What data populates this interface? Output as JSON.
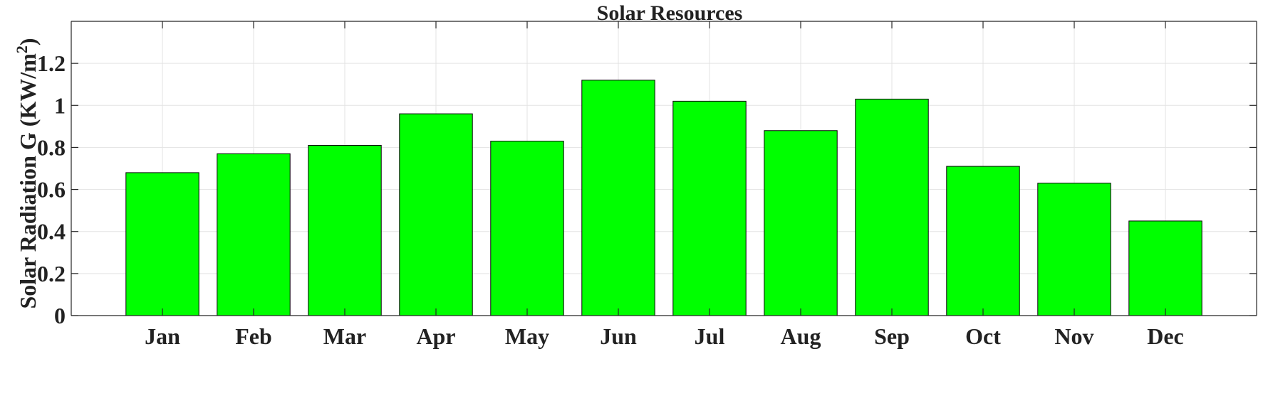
{
  "chart_data": {
    "type": "bar",
    "title": "Solar Resources",
    "xlabel": "",
    "ylabel": "Solar Radiation G (KW/m",
    "ylabel_superscript": "2",
    "ylabel_suffix": ")",
    "categories": [
      "Jan",
      "Feb",
      "Mar",
      "Apr",
      "May",
      "Jun",
      "Jul",
      "Aug",
      "Sep",
      "Oct",
      "Nov",
      "Dec"
    ],
    "values": [
      0.68,
      0.77,
      0.81,
      0.96,
      0.83,
      1.12,
      1.02,
      0.88,
      1.03,
      0.71,
      0.63,
      0.45
    ],
    "ylim": [
      0,
      1.4
    ],
    "yticks": [
      0,
      0.2,
      0.4,
      0.6,
      0.8,
      1,
      1.2
    ],
    "ytick_labels": [
      "0",
      "0.2",
      "0.4",
      "0.6",
      "0.8",
      "1",
      "1.2"
    ],
    "xlim": [
      0,
      13
    ],
    "grid": true,
    "bar_color": "#00FF00",
    "bar_edge_color": "#000000",
    "legend": "none"
  }
}
